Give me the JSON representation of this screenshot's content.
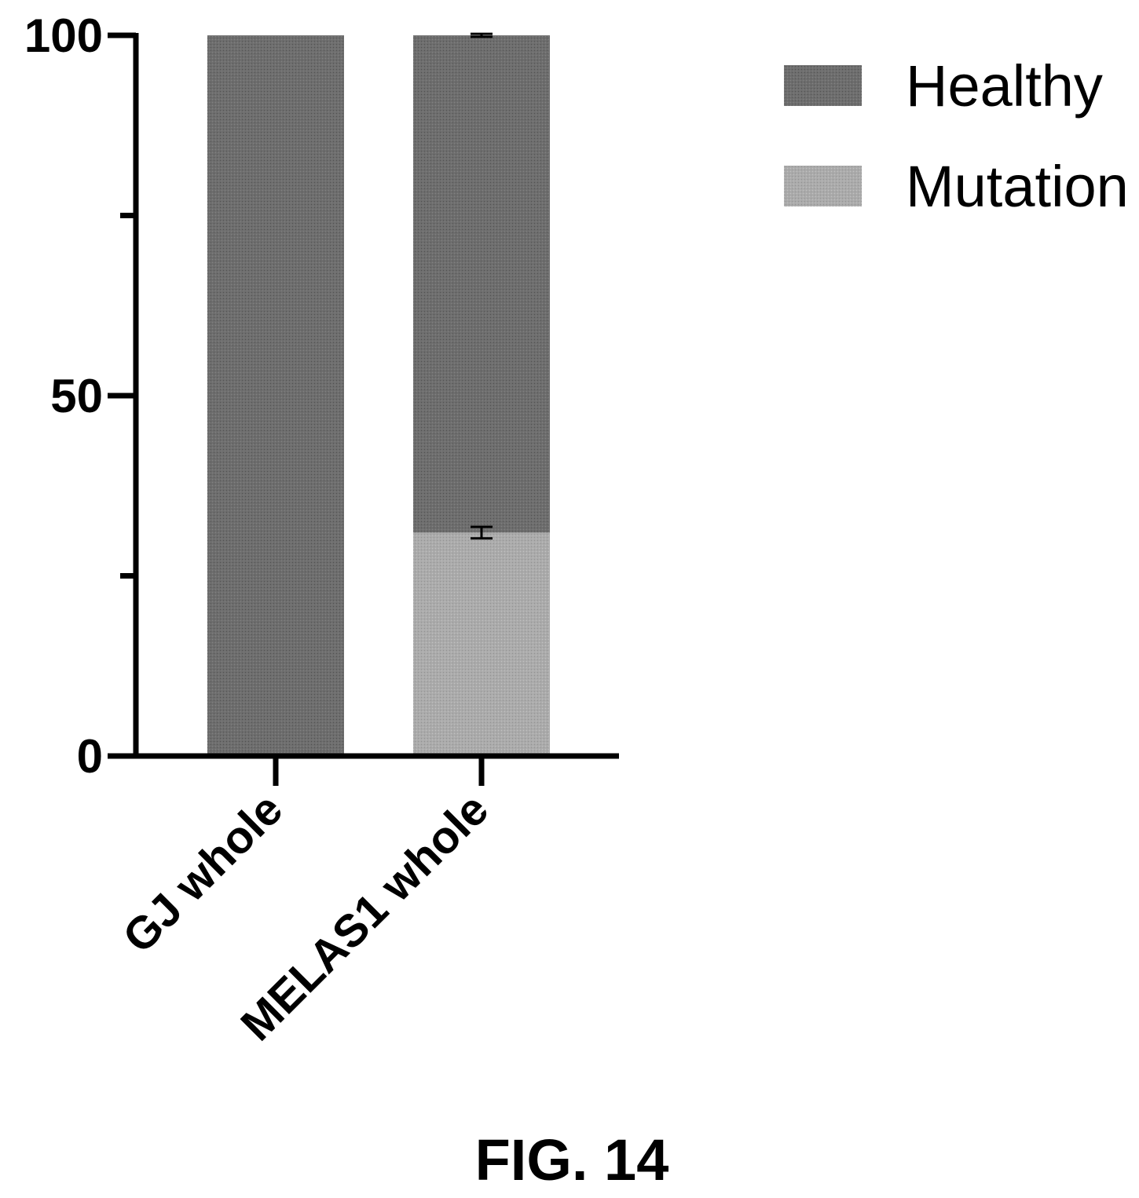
{
  "chart_data": {
    "type": "bar",
    "stacked": true,
    "categories": [
      "GJ whole",
      "MELAS1 whole"
    ],
    "series": [
      {
        "name": "Mutation",
        "values": [
          0,
          31
        ],
        "error": [
          0,
          0.8
        ],
        "color": "#a9a9a9"
      },
      {
        "name": "Healthy",
        "values": [
          100,
          69
        ],
        "error": [
          0,
          0.2
        ],
        "color": "#6b6b6b"
      }
    ],
    "ylim": [
      0,
      100
    ],
    "yticks": [
      0,
      50,
      100
    ],
    "minor_yticks": [
      25,
      75
    ],
    "legend_position": "top-right",
    "grid": false,
    "title": "",
    "xlabel": "",
    "ylabel": ""
  },
  "figure": {
    "caption": "FIG. 14"
  }
}
